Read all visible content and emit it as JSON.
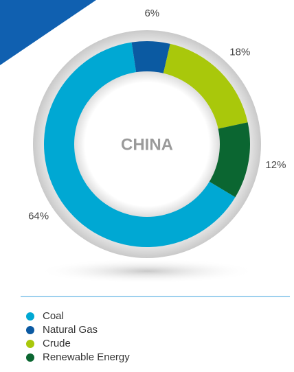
{
  "chart_data": {
    "type": "donut",
    "title": "CHINA",
    "categories": [
      "Coal",
      "Natural Gas",
      "Crude",
      "Renewable Energy"
    ],
    "values": [
      64,
      6,
      18,
      12
    ],
    "value_labels": [
      "64%",
      "6%",
      "18%",
      "12%"
    ],
    "colors": [
      "#00a8d3",
      "#0b5aa2",
      "#a9c80b",
      "#0b6631"
    ]
  }
}
